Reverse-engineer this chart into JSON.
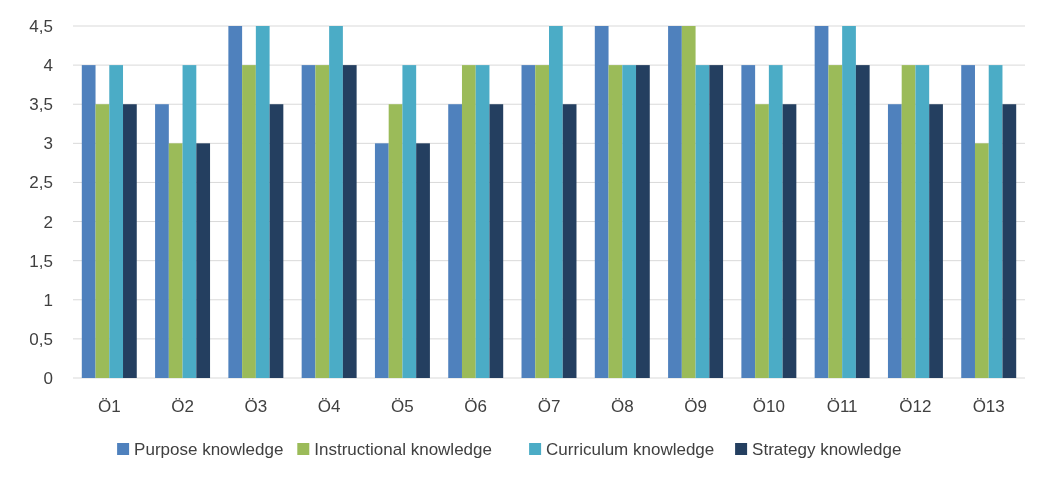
{
  "chart_data": {
    "type": "bar",
    "categories": [
      "Ö1",
      "Ö2",
      "Ö3",
      "Ö4",
      "Ö5",
      "Ö6",
      "Ö7",
      "Ö8",
      "Ö9",
      "Ö10",
      "Ö11",
      "Ö12",
      "Ö13"
    ],
    "series": [
      {
        "name": "Purpose knowledge",
        "color": "#4f81bd",
        "values": [
          4,
          3.5,
          4.5,
          4,
          3,
          3.5,
          4,
          4.5,
          4.5,
          4,
          4.5,
          3.5,
          4
        ]
      },
      {
        "name": "Instructional knowledge",
        "color": "#9bbb59",
        "values": [
          3.5,
          3,
          4,
          4,
          3.5,
          4,
          4,
          4,
          4.5,
          3.5,
          4,
          4,
          3
        ]
      },
      {
        "name": "Curriculum knowledge",
        "color": "#4bacc6",
        "values": [
          4,
          4,
          4.5,
          4.5,
          4,
          4,
          4.5,
          4,
          4,
          4,
          4.5,
          4,
          4
        ]
      },
      {
        "name": "Strategy knowledge",
        "color": "#243f60",
        "values": [
          3.5,
          3,
          3.5,
          4,
          3,
          3.5,
          3.5,
          4,
          4,
          3.5,
          4,
          3.5,
          3.5
        ]
      }
    ],
    "ylim": [
      0,
      4.5
    ],
    "yticks": [
      0,
      {
        "value": 0.5,
        "label": "0,5"
      },
      1,
      {
        "value": 1.5,
        "label": "1,5"
      },
      2,
      {
        "value": 2.5,
        "label": "2,5"
      },
      3,
      {
        "value": 3.5,
        "label": "3,5"
      },
      4,
      {
        "value": 4.5,
        "label": "4,5"
      }
    ],
    "grid": "y",
    "legend": "bottom"
  }
}
